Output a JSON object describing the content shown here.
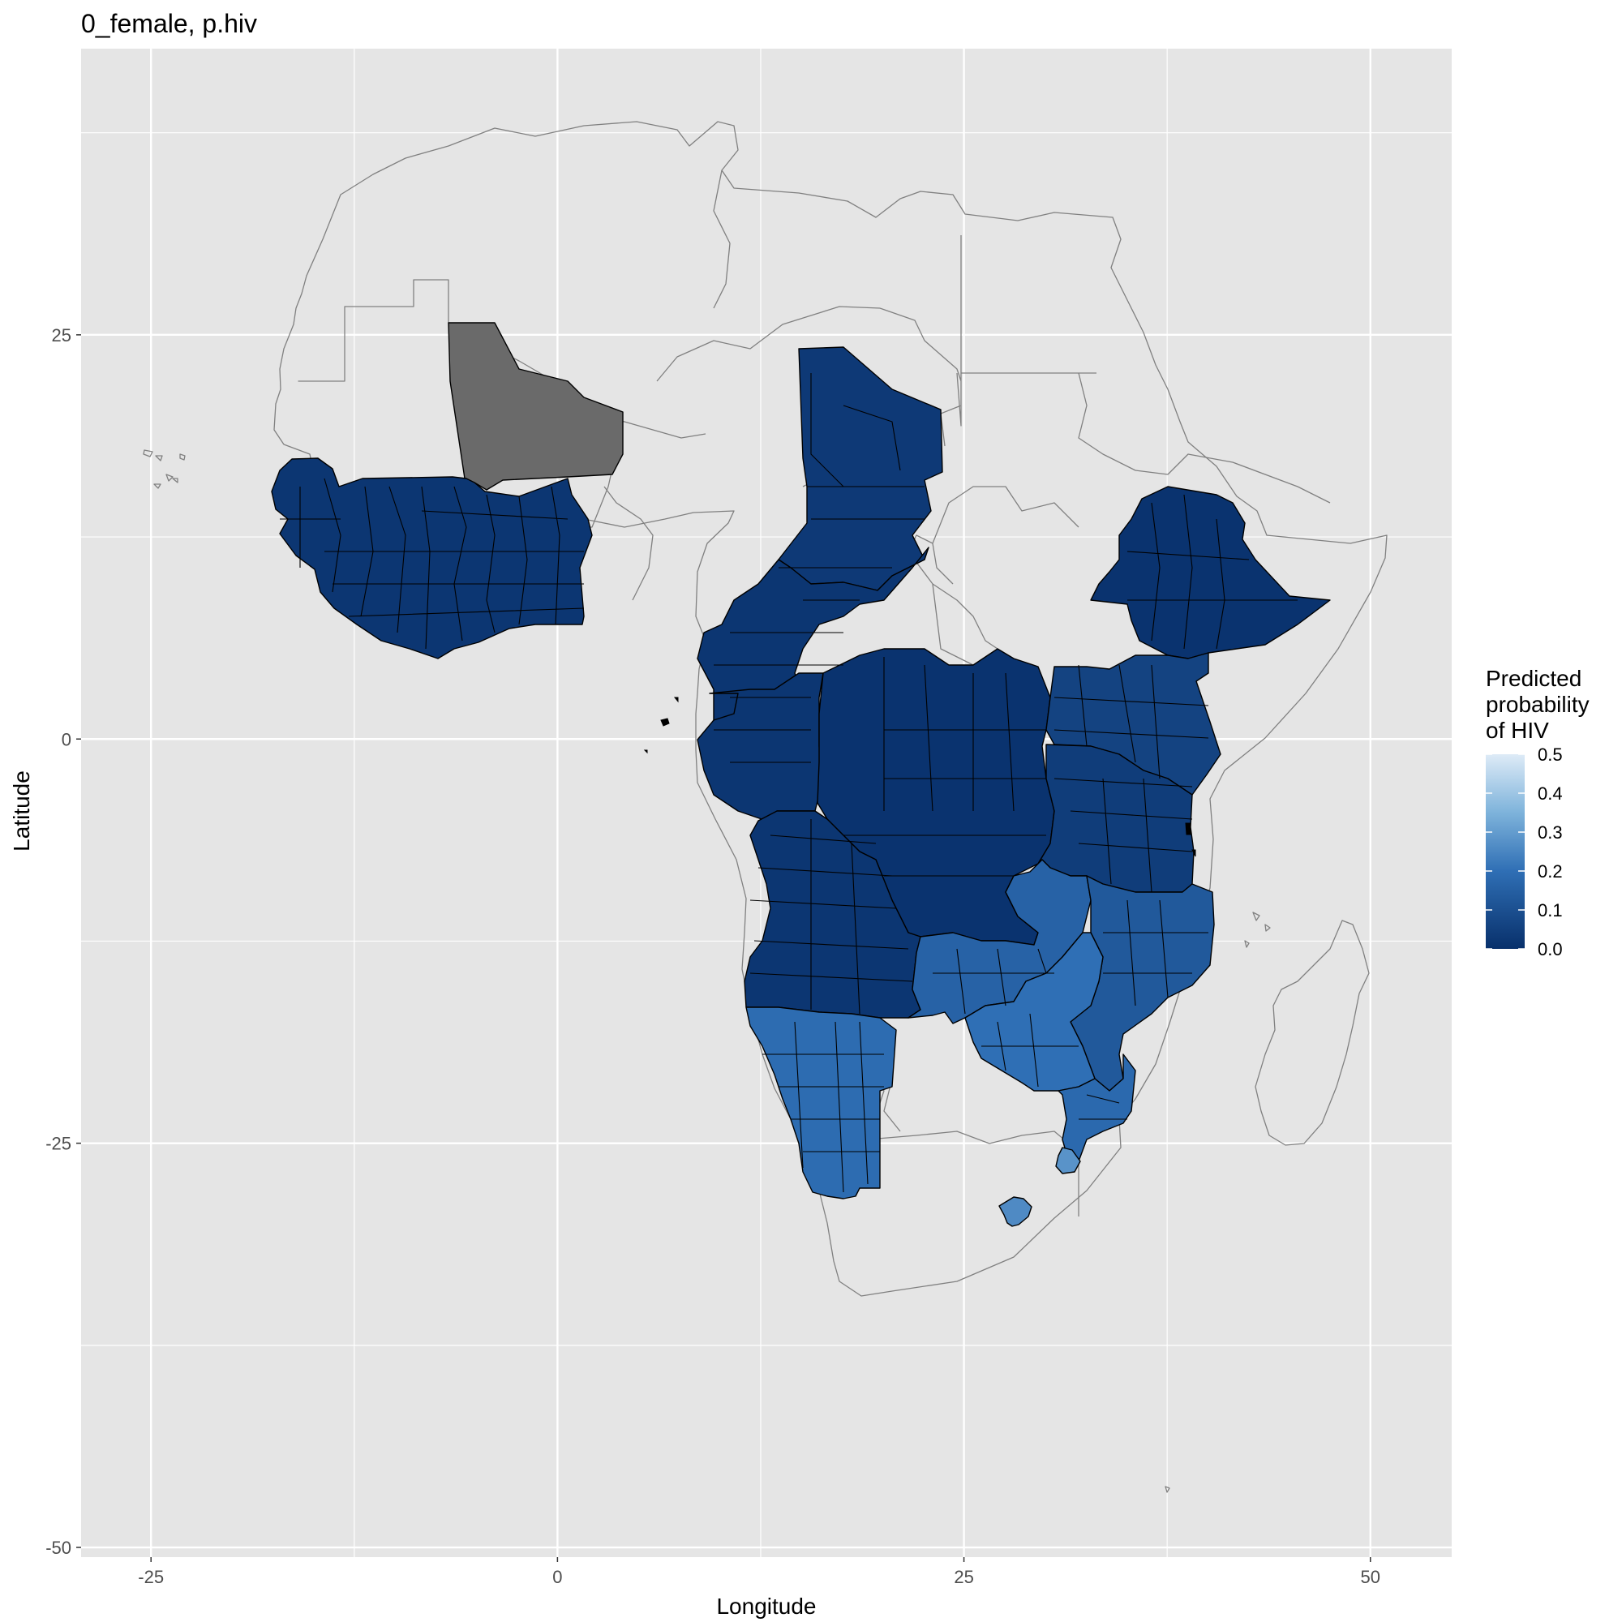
{
  "title": "0_female, p.hiv",
  "x_axis": {
    "label": "Longitude",
    "ticks": [
      -25,
      0,
      25,
      50
    ],
    "range": [
      -29.3,
      55.0
    ]
  },
  "y_axis": {
    "label": "Latitude",
    "ticks": [
      25,
      0,
      -25,
      -50
    ],
    "range": [
      -50.6,
      42.7
    ]
  },
  "legend": {
    "title_lines": [
      "Predicted",
      "probability",
      "of HIV"
    ],
    "ticks": [
      "0.5",
      "0.4",
      "0.3",
      "0.2",
      "0.1",
      "0.0"
    ],
    "range": [
      0.0,
      0.5
    ],
    "color_low": "#08306b",
    "color_high": "#deebf7"
  },
  "colors": {
    "panel": "#e5e5e5",
    "grid": "#ffffff",
    "no_data": "#6a6a6a",
    "outline": "#808080"
  },
  "regions": [
    {
      "name": "mali",
      "value": null
    },
    {
      "name": "west-africa",
      "value": 0.02
    },
    {
      "name": "chad",
      "value": 0.03
    },
    {
      "name": "cameroon-nigeria-east",
      "value": 0.02
    },
    {
      "name": "gabon-congo",
      "value": 0.02
    },
    {
      "name": "drc",
      "value": 0.01
    },
    {
      "name": "ethiopia",
      "value": 0.01
    },
    {
      "name": "kenya-uganda",
      "value": 0.06
    },
    {
      "name": "tanzania-rwanda-burundi",
      "value": 0.04
    },
    {
      "name": "angola",
      "value": 0.02
    },
    {
      "name": "zambia",
      "value": 0.16
    },
    {
      "name": "malawi-mozambique",
      "value": 0.13
    },
    {
      "name": "zimbabwe",
      "value": 0.2
    },
    {
      "name": "mozambique-south",
      "value": 0.18
    },
    {
      "name": "namibia",
      "value": 0.19
    },
    {
      "name": "eswatini",
      "value": 0.28
    },
    {
      "name": "lesotho",
      "value": 0.26
    }
  ]
}
